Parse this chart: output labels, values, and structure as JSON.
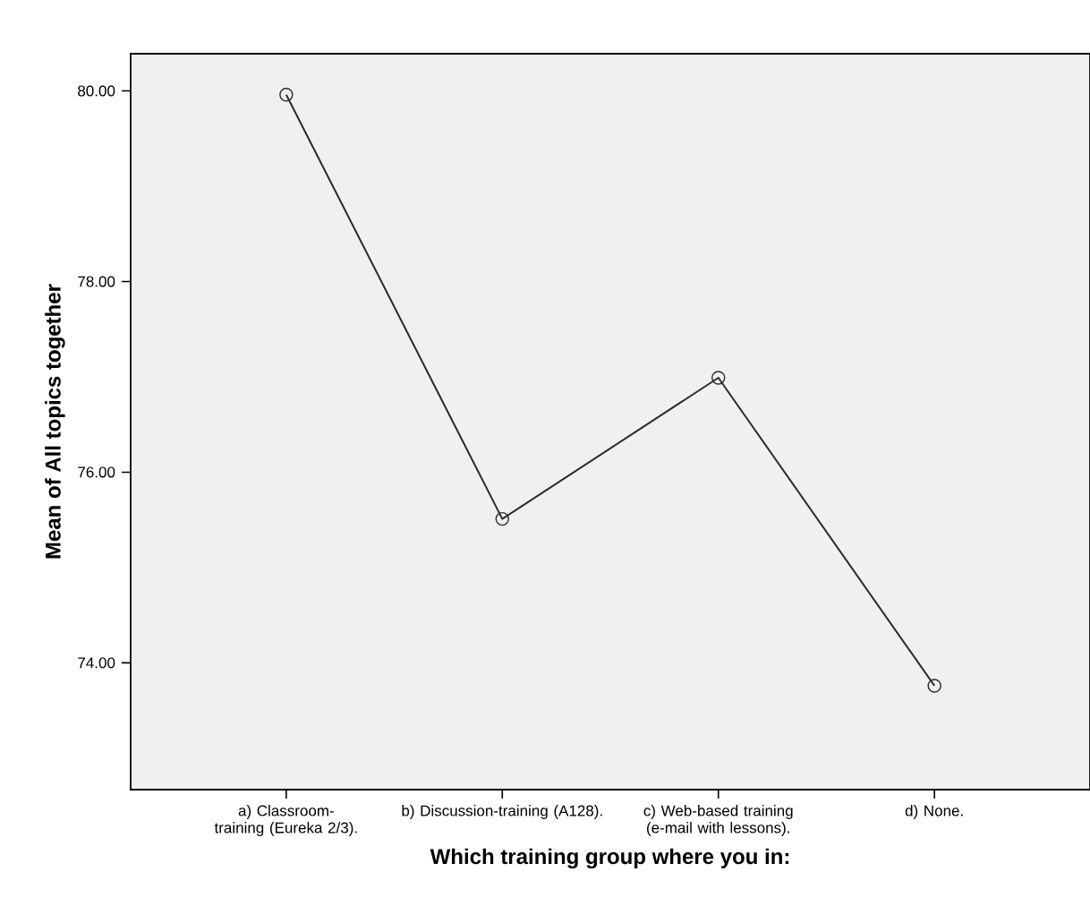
{
  "chart_data": {
    "type": "line",
    "xlabel": "Which training group where you in:",
    "ylabel": "Mean of All topics together",
    "categories": [
      "a) Classroom-training (Eureka 2/3).",
      "b) Discussion-training (A128).",
      "c) Web-based training (e-mail with lessons).",
      "d) None."
    ],
    "values": [
      79.96,
      75.51,
      76.99,
      73.76
    ],
    "color": "#2b2b2b",
    "marker": "circle",
    "line_style": "solid",
    "ylim": [
      72.67,
      80.39
    ],
    "yticks": [
      {
        "value": 74,
        "label": "74.00"
      },
      {
        "value": 76,
        "label": "76.00"
      },
      {
        "value": 78,
        "label": "78.00"
      },
      {
        "value": 80,
        "label": "80.00"
      }
    ],
    "grid": false
  }
}
